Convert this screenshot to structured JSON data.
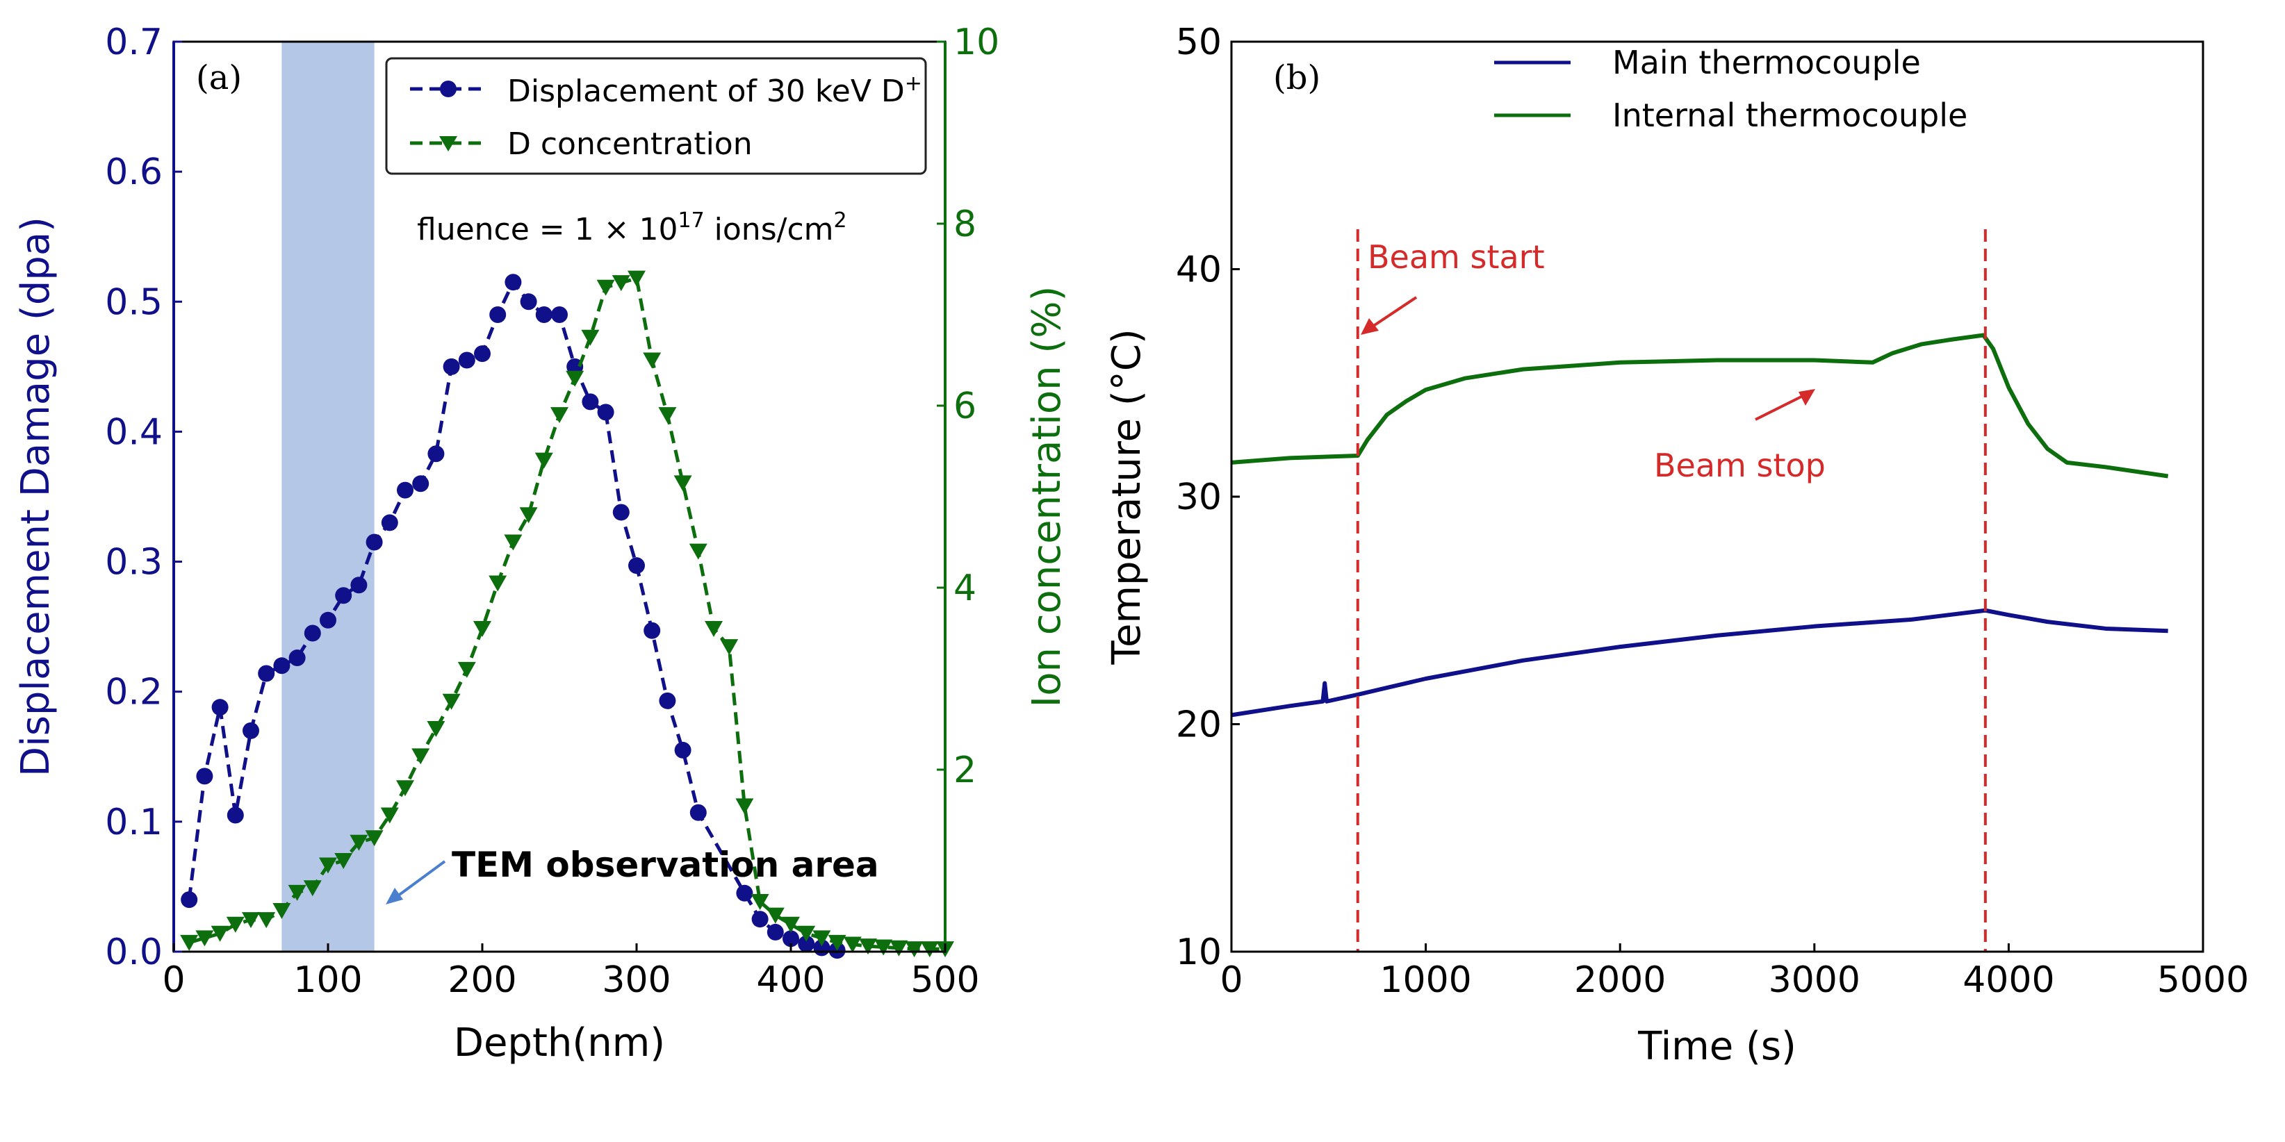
{
  "colors": {
    "blue": "#10108a",
    "green": "#0d6e0d",
    "band": "#b4c7e7",
    "red": "#d42a2a",
    "arrow": "#4a7fd0"
  },
  "chart_data": [
    {
      "type": "line",
      "panel_label": "(a)",
      "xlabel": "Depth(nm)",
      "ylabel": "Displacement Damage (dpa)",
      "ylabel_right": "Ion concentration (%)",
      "xlim": [
        0,
        500
      ],
      "ylim": [
        0,
        0.7
      ],
      "ylim_right": [
        0,
        10
      ],
      "xticks": [
        "0",
        "100",
        "200",
        "300",
        "400",
        "500"
      ],
      "yticks": [
        "0.0",
        "0.1",
        "0.2",
        "0.3",
        "0.4",
        "0.5",
        "0.6",
        "0.7"
      ],
      "yticks_right": [
        "2",
        "4",
        "6",
        "8",
        "10"
      ],
      "annotation": "fluence = 1 × 10",
      "annotation_exp": "17",
      "annotation_unit": " ions/cm",
      "annotation_unit_exp": "2",
      "shaded_region": {
        "x": [
          70,
          130
        ],
        "label": "TEM observation area"
      },
      "legend_position": "top-right",
      "series": [
        {
          "name": "Displacement of 30 keV D",
          "name_sup": "+",
          "axis": "left",
          "marker": "circle",
          "style": "dashed",
          "x": [
            10,
            20,
            30,
            40,
            50,
            60,
            70,
            80,
            90,
            100,
            110,
            120,
            130,
            140,
            150,
            160,
            170,
            180,
            190,
            200,
            210,
            220,
            230,
            240,
            250,
            260,
            270,
            280,
            290,
            300,
            310,
            320,
            330,
            340,
            370,
            380,
            390,
            400,
            410,
            420,
            430
          ],
          "y": [
            0.04,
            0.135,
            0.188,
            0.105,
            0.17,
            0.214,
            0.22,
            0.226,
            0.245,
            0.255,
            0.274,
            0.282,
            0.315,
            0.33,
            0.355,
            0.36,
            0.383,
            0.45,
            0.455,
            0.46,
            0.49,
            0.515,
            0.5,
            0.49,
            0.49,
            0.45,
            0.423,
            0.415,
            0.338,
            0.297,
            0.247,
            0.193,
            0.155,
            0.107,
            0.045,
            0.025,
            0.015,
            0.01,
            0.006,
            0.003,
            0.001
          ]
        },
        {
          "name": "D concentration",
          "axis": "right",
          "marker": "triangle-down",
          "style": "dashed",
          "x": [
            10,
            20,
            30,
            40,
            50,
            60,
            70,
            80,
            90,
            100,
            110,
            120,
            130,
            140,
            150,
            160,
            170,
            180,
            190,
            200,
            210,
            220,
            230,
            240,
            250,
            260,
            270,
            280,
            290,
            300,
            310,
            320,
            330,
            340,
            350,
            360,
            370,
            380,
            390,
            400,
            410,
            420,
            430,
            440,
            450,
            460,
            470,
            480,
            490,
            500
          ],
          "y": [
            0.1,
            0.15,
            0.2,
            0.3,
            0.35,
            0.35,
            0.45,
            0.65,
            0.7,
            0.95,
            1.0,
            1.2,
            1.25,
            1.5,
            1.8,
            2.15,
            2.45,
            2.75,
            3.1,
            3.55,
            4.05,
            4.5,
            4.8,
            5.4,
            5.9,
            6.3,
            6.75,
            7.3,
            7.35,
            7.4,
            6.5,
            5.9,
            5.15,
            4.4,
            3.55,
            3.35,
            1.6,
            0.55,
            0.4,
            0.3,
            0.2,
            0.15,
            0.1,
            0.08,
            0.06,
            0.05,
            0.04,
            0.03,
            0.03,
            0.03
          ]
        }
      ]
    },
    {
      "type": "line",
      "panel_label": "(b)",
      "xlabel": "Time (s)",
      "ylabel": "Temperature (°C)",
      "xlim": [
        0,
        5000
      ],
      "ylim": [
        10,
        50
      ],
      "xticks": [
        "0",
        "1000",
        "2000",
        "3000",
        "4000",
        "5000"
      ],
      "yticks": [
        "10",
        "20",
        "30",
        "40",
        "50"
      ],
      "legend_position": "top-right",
      "vlines": [
        650,
        3880
      ],
      "annotations": [
        "Beam start",
        "Beam stop"
      ],
      "series": [
        {
          "name": "Main thermocouple",
          "x": [
            0,
            300,
            470,
            480,
            490,
            650,
            800,
            1000,
            1250,
            1500,
            2000,
            2500,
            3000,
            3500,
            3880,
            4000,
            4200,
            4500,
            4820
          ],
          "y": [
            20.4,
            20.8,
            21.0,
            21.8,
            21.0,
            21.3,
            21.6,
            22.0,
            22.4,
            22.8,
            23.4,
            23.9,
            24.3,
            24.6,
            25.0,
            24.8,
            24.5,
            24.2,
            24.1
          ]
        },
        {
          "name": "Internal thermocouple",
          "x": [
            0,
            300,
            650,
            700,
            800,
            900,
            1000,
            1200,
            1500,
            2000,
            2500,
            3000,
            3300,
            3400,
            3550,
            3700,
            3870,
            3920,
            4000,
            4100,
            4200,
            4300,
            4500,
            4820
          ],
          "y": [
            31.5,
            31.7,
            31.8,
            32.5,
            33.6,
            34.2,
            34.7,
            35.2,
            35.6,
            35.9,
            36.0,
            36.0,
            35.9,
            36.3,
            36.7,
            36.9,
            37.1,
            36.5,
            34.8,
            33.2,
            32.1,
            31.5,
            31.3,
            30.9
          ]
        }
      ]
    }
  ]
}
